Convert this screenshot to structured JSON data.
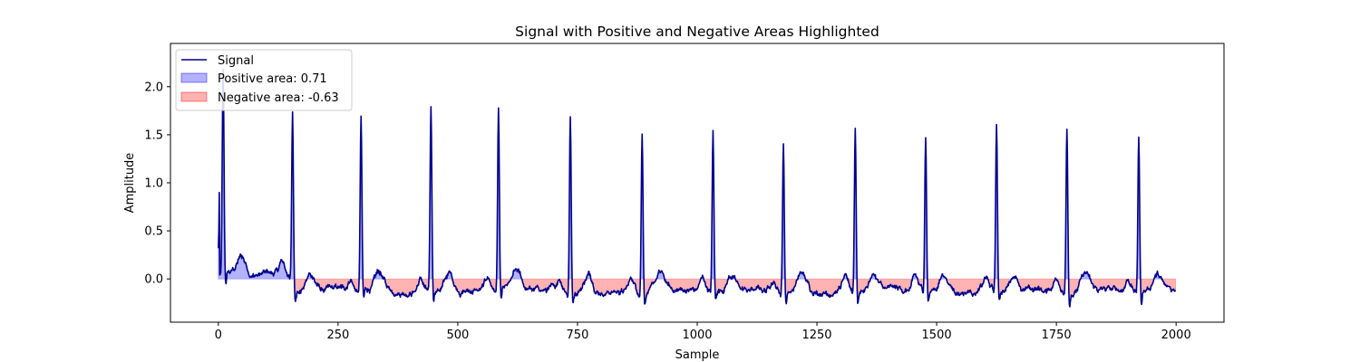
{
  "chart_data": {
    "type": "line",
    "title": "Signal with Positive and Negative Areas Highlighted",
    "xlabel": "Sample",
    "ylabel": "Amplitude",
    "xlim": [
      -100,
      2100
    ],
    "ylim": [
      -0.45,
      2.45
    ],
    "xticks": [
      0,
      250,
      500,
      750,
      1000,
      1250,
      1500,
      1750,
      2000
    ],
    "yticks": [
      0.0,
      0.5,
      1.0,
      1.5,
      2.0
    ],
    "ytick_labels": [
      "0.0",
      "0.5",
      "1.0",
      "1.5",
      "2.0"
    ],
    "grid": false,
    "legend_position": "top-left",
    "legend": [
      {
        "label": "Signal",
        "kind": "line",
        "color": "#00008b"
      },
      {
        "label": "Positive area: 0.71",
        "kind": "patch",
        "color": "#0000ff",
        "alpha": 0.3
      },
      {
        "label": "Negative area: -0.63",
        "kind": "patch",
        "color": "#ff0000",
        "alpha": 0.3
      }
    ],
    "series": [
      {
        "name": "Signal",
        "color": "#00008b",
        "n_samples": 2000,
        "baseline_shift_sample": 155,
        "baseline_before_shift": 0.05,
        "baseline_after_shift": -0.12,
        "beats": [
          {
            "x": 10,
            "peak": 2.2
          },
          {
            "x": 155,
            "peak": 1.85
          },
          {
            "x": 298,
            "peak": 1.9
          },
          {
            "x": 444,
            "peak": 1.97
          },
          {
            "x": 585,
            "peak": 2.0
          },
          {
            "x": 735,
            "peak": 1.93
          },
          {
            "x": 885,
            "peak": 1.77
          },
          {
            "x": 1033,
            "peak": 1.74
          },
          {
            "x": 1180,
            "peak": 1.65
          },
          {
            "x": 1330,
            "peak": 1.79
          },
          {
            "x": 1477,
            "peak": 1.72
          },
          {
            "x": 1625,
            "peak": 1.82
          },
          {
            "x": 1772,
            "peak": 1.82
          },
          {
            "x": 1922,
            "peak": 1.7
          }
        ]
      }
    ],
    "areas": {
      "positive": {
        "value": 0.71,
        "color": "#0000ff",
        "alpha": 0.3
      },
      "negative": {
        "value": -0.63,
        "color": "#ff0000",
        "alpha": 0.3
      }
    }
  }
}
